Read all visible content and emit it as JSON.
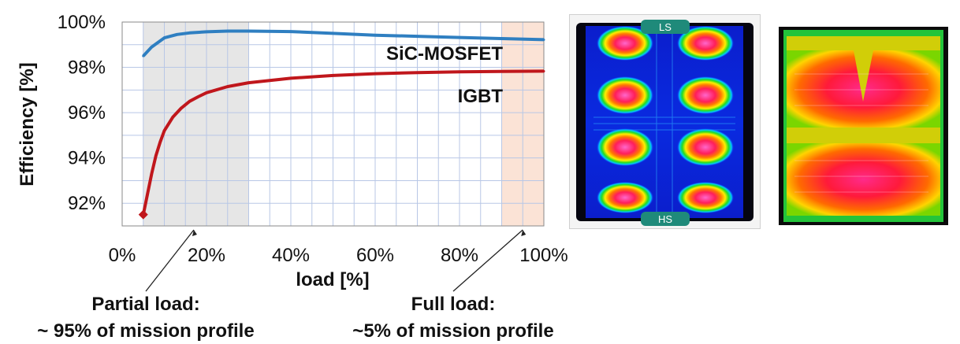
{
  "chart_data": {
    "type": "line",
    "title": "",
    "xlabel": "load [%]",
    "ylabel": "Efficiency [%]",
    "xlim": [
      0,
      100
    ],
    "ylim": [
      91,
      100
    ],
    "xticks": [
      "0%",
      "20%",
      "40%",
      "60%",
      "80%",
      "100%"
    ],
    "yticks": [
      "92%",
      "94%",
      "96%",
      "98%",
      "100%"
    ],
    "grid": true,
    "series": [
      {
        "name": "SiC-MOSFET",
        "color": "#2f7fc1",
        "x": [
          5,
          7,
          10,
          13,
          16,
          20,
          25,
          30,
          40,
          50,
          60,
          70,
          80,
          90,
          100
        ],
        "y": [
          98.5,
          98.9,
          99.3,
          99.45,
          99.52,
          99.57,
          99.6,
          99.6,
          99.58,
          99.5,
          99.42,
          99.37,
          99.32,
          99.27,
          99.22
        ]
      },
      {
        "name": "IGBT",
        "color": "#c0171c",
        "x": [
          5,
          6,
          7,
          8,
          9,
          10,
          12,
          14,
          16,
          18,
          20,
          25,
          30,
          40,
          50,
          60,
          70,
          80,
          90,
          100
        ],
        "y": [
          91.5,
          92.4,
          93.3,
          94.1,
          94.7,
          95.2,
          95.8,
          96.2,
          96.5,
          96.7,
          96.88,
          97.15,
          97.32,
          97.52,
          97.64,
          97.72,
          97.77,
          97.8,
          97.82,
          97.83
        ]
      }
    ],
    "regions": [
      {
        "name": "partial-load",
        "x": [
          5,
          30
        ],
        "color": "#e6e6e6"
      },
      {
        "name": "full-load",
        "x": [
          90,
          100
        ],
        "color": "#fbe3d6"
      }
    ],
    "annotations": [
      {
        "line1": "Partial load:",
        "line2": "~ 95% of mission profile",
        "x": 17
      },
      {
        "line1": "Full load:",
        "line2": "~5% of mission profile",
        "x": 95
      }
    ]
  },
  "thermal_left": {
    "top_label": "LS",
    "bottom_label": "HS"
  }
}
